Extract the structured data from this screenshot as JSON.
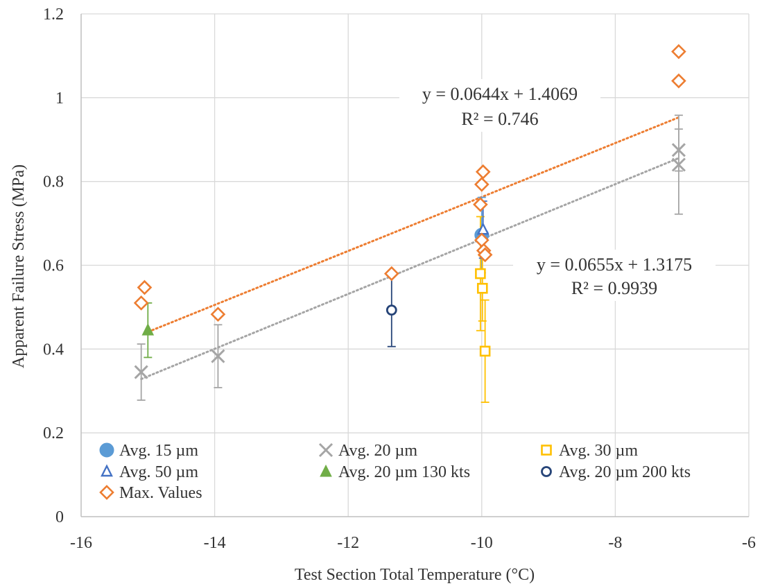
{
  "chart_data": {
    "type": "scatter",
    "xlabel": "Test Section Total Temperature (°C)",
    "ylabel": "Apparent Failure Stress (MPa)",
    "xlim": [
      -16,
      -6
    ],
    "ylim": [
      0,
      1.2
    ],
    "xticks": [
      -16,
      -14,
      -12,
      -10,
      -8,
      -6
    ],
    "yticks": [
      0,
      0.2,
      0.4,
      0.6,
      0.8,
      1,
      1.2
    ],
    "xtick_labels": [
      "-16",
      "-14",
      "-12",
      "-10",
      "-8",
      "-6"
    ],
    "ytick_labels": [
      "0",
      "0.2",
      "0.4",
      "0.6",
      "0.8",
      "1",
      "1.2"
    ],
    "grid": true,
    "legend_position": "bottom-left",
    "series": [
      {
        "name": "Avg. 15 µm",
        "marker": "circle-filled",
        "color": "#5b9bd5",
        "points": [
          {
            "x": -10.0,
            "y": 0.672,
            "err": 0.09
          }
        ]
      },
      {
        "name": "Avg. 20 µm",
        "marker": "cross",
        "color": "#a5a5a5",
        "points": [
          {
            "x": -15.1,
            "y": 0.345,
            "err": 0.067
          },
          {
            "x": -13.95,
            "y": 0.383,
            "err": 0.075
          },
          {
            "x": -7.05,
            "y": 0.875,
            "err": 0.05
          },
          {
            "x": -7.05,
            "y": 0.84,
            "err": 0.118
          }
        ]
      },
      {
        "name": "Avg. 30 µm",
        "marker": "square-open",
        "color": "#ffc000",
        "points": [
          {
            "x": -10.02,
            "y": 0.58,
            "err": 0.136
          },
          {
            "x": -9.99,
            "y": 0.545,
            "err": 0.078
          },
          {
            "x": -9.95,
            "y": 0.395,
            "err": 0.122
          }
        ]
      },
      {
        "name": "Avg. 50 µm",
        "marker": "triangle-open",
        "color": "#4472c4",
        "points": [
          {
            "x": -9.98,
            "y": 0.685,
            "err": 0.068
          }
        ]
      },
      {
        "name": "Avg. 20 µm 130 kts",
        "marker": "triangle-filled",
        "color": "#70ad47",
        "points": [
          {
            "x": -15.0,
            "y": 0.445,
            "err": 0.065
          }
        ]
      },
      {
        "name": "Avg. 20 µm 200 kts",
        "marker": "circle-open",
        "color": "#264478",
        "points": [
          {
            "x": -11.35,
            "y": 0.493,
            "err": 0.087
          }
        ]
      },
      {
        "name": "Max. Values",
        "marker": "diamond-open",
        "color": "#ed7d31",
        "points": [
          {
            "x": -15.1,
            "y": 0.51
          },
          {
            "x": -15.05,
            "y": 0.547
          },
          {
            "x": -13.95,
            "y": 0.483
          },
          {
            "x": -11.35,
            "y": 0.58
          },
          {
            "x": -10.02,
            "y": 0.745
          },
          {
            "x": -10.0,
            "y": 0.793
          },
          {
            "x": -9.98,
            "y": 0.823
          },
          {
            "x": -10.0,
            "y": 0.66
          },
          {
            "x": -9.97,
            "y": 0.635
          },
          {
            "x": -9.95,
            "y": 0.625
          },
          {
            "x": -7.05,
            "y": 1.11
          },
          {
            "x": -7.05,
            "y": 1.04
          }
        ]
      }
    ],
    "trendlines": [
      {
        "series": "Max. Values",
        "color": "#ed7d31",
        "slope": 0.0644,
        "intercept": 1.4069,
        "x_range": [
          -15.05,
          -7.05
        ],
        "equation": "y = 0.0644x + 1.4069",
        "r2": "R² = 0.746"
      },
      {
        "series": "Avg. 20 µm",
        "color": "#a5a5a5",
        "slope": 0.0655,
        "intercept": 1.3175,
        "x_range": [
          -15.1,
          -7.05
        ],
        "equation": "y = 0.0655x + 1.3175",
        "r2": "R² = 0.9939"
      }
    ],
    "legend_layout": [
      [
        "Avg. 15 µm",
        "Avg. 20 µm",
        "Avg. 30 µm"
      ],
      [
        "Avg. 50 µm",
        "Avg. 20 µm 130 kts",
        "Avg. 20 µm 200 kts"
      ],
      [
        "Max. Values"
      ]
    ]
  }
}
